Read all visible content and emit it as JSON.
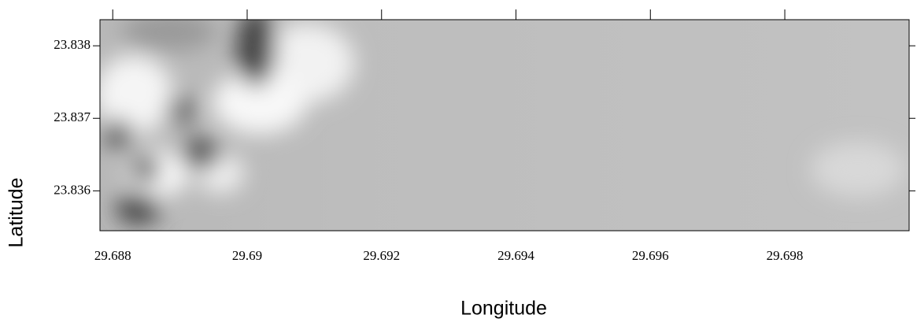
{
  "chart_data": {
    "type": "heatmap",
    "xlabel": "Longitude",
    "ylabel": "Latitude",
    "xlim": [
      29.68781,
      29.69985
    ],
    "ylim": [
      23.83545,
      23.83836
    ],
    "xticks": [
      29.688,
      29.69,
      29.692,
      29.694,
      29.696,
      29.698
    ],
    "yticks": [
      23.836,
      23.837,
      23.838
    ]
  }
}
